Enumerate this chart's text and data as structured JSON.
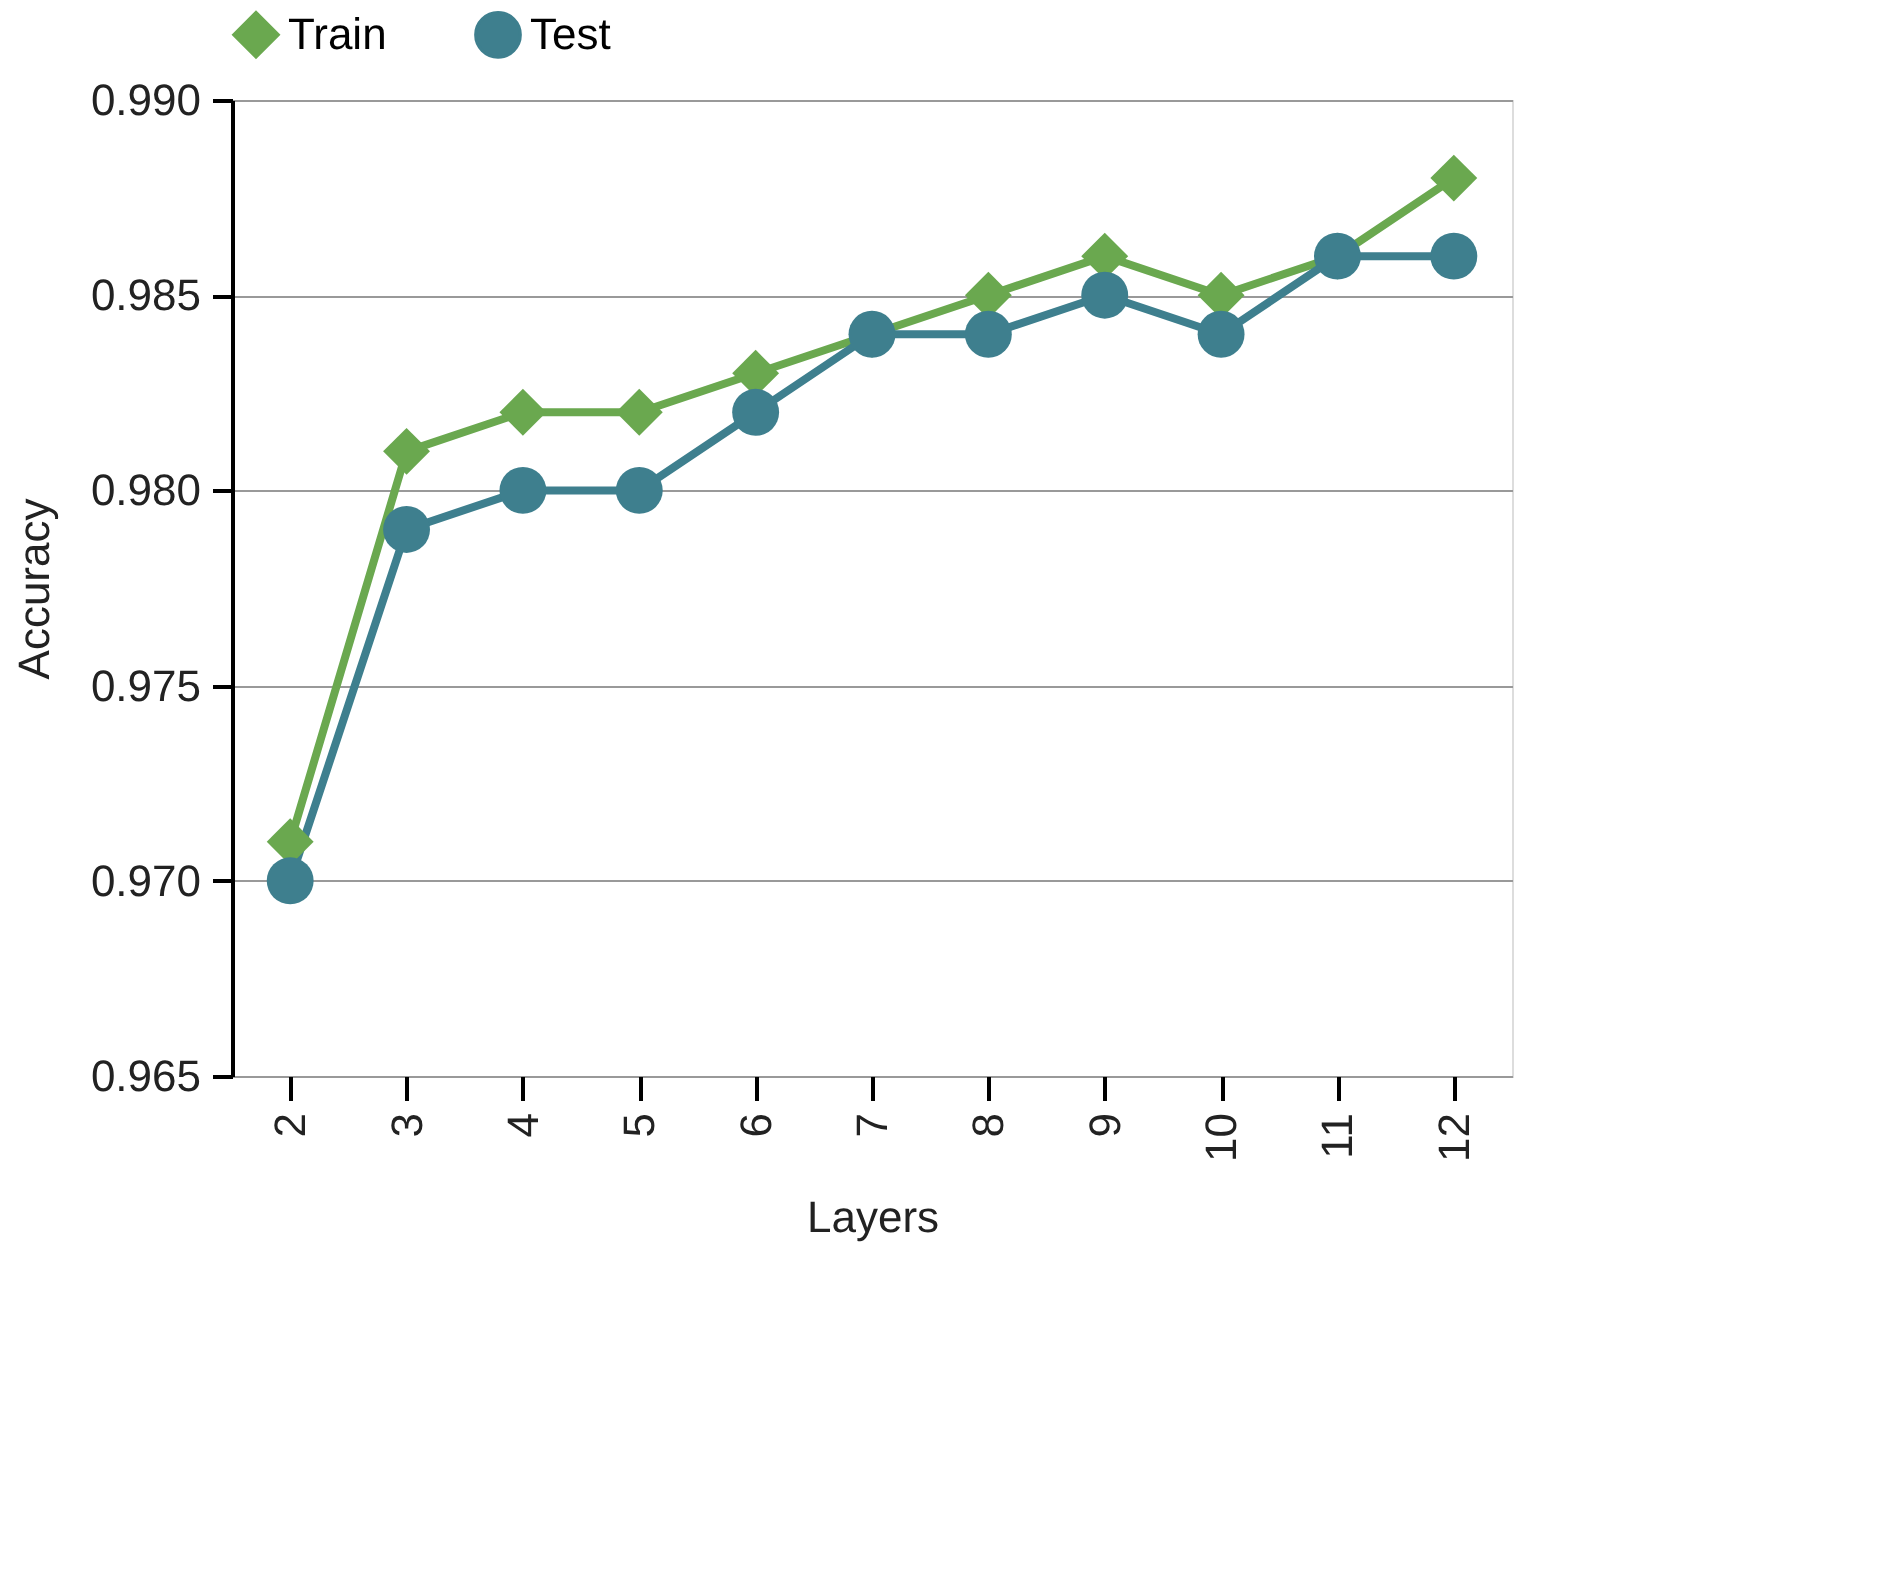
{
  "chart_data": {
    "type": "line",
    "xlabel": "Layers",
    "ylabel": "Accuracy",
    "categories": [
      "2",
      "3",
      "4",
      "5",
      "6",
      "7",
      "8",
      "9",
      "10",
      "11",
      "12"
    ],
    "series": [
      {
        "name": "Train",
        "color": "#6aa84f",
        "marker": "diamond",
        "values": [
          0.971,
          0.981,
          0.982,
          0.982,
          0.983,
          0.984,
          0.985,
          0.986,
          0.985,
          0.986,
          0.988
        ]
      },
      {
        "name": "Test",
        "color": "#3e7f8e",
        "marker": "circle",
        "values": [
          0.97,
          0.979,
          0.98,
          0.98,
          0.982,
          0.984,
          0.984,
          0.985,
          0.984,
          0.986,
          0.986
        ]
      }
    ],
    "ylim": [
      0.965,
      0.99
    ],
    "yticks": [
      0.965,
      {
        "value": 0.97,
        "label": "0.970"
      },
      0.975,
      {
        "value": 0.98,
        "label": "0.980"
      },
      0.985,
      {
        "value": 0.99,
        "label": "0.990"
      }
    ],
    "line_style": "solid",
    "grid": "y",
    "legend": "top"
  }
}
